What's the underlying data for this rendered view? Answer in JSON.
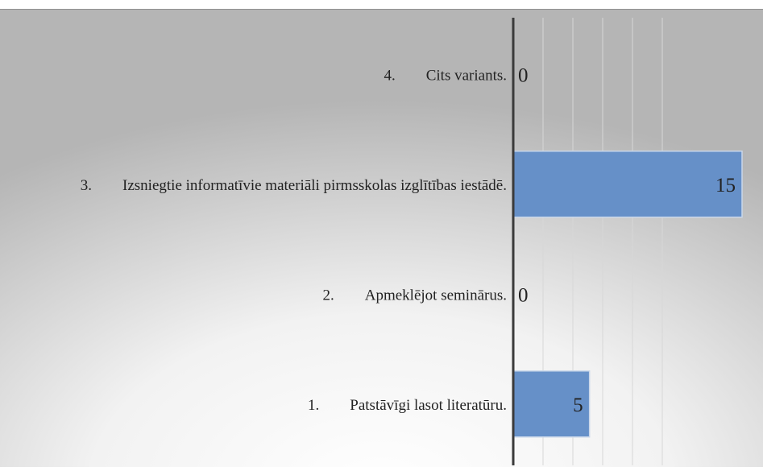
{
  "chart_data": {
    "type": "bar",
    "orientation": "horizontal",
    "categories": [
      "4.        Cits variants.",
      "3.        Izsniegtie informatīvie materiāli pirmsskolas izglītības iestādē.",
      "2.        Apmeklējot seminārus.",
      "1.        Patstāvīgi lasot literatūru."
    ],
    "values": [
      0,
      15,
      0,
      5
    ],
    "data_labels": [
      "0",
      "15",
      "0",
      "5"
    ],
    "xlim": [
      0,
      15
    ],
    "title": "",
    "xlabel": "",
    "ylabel": "",
    "grid": true,
    "legend": "none",
    "colors": {
      "bar": "#6690c8",
      "bar_stroke": "#c9d7ea",
      "axis": "#3a3a3a",
      "grid": "#d7d7d7",
      "text": "#222222",
      "background_center": "#ffffff",
      "background_edge": "#b8b8b8"
    }
  }
}
